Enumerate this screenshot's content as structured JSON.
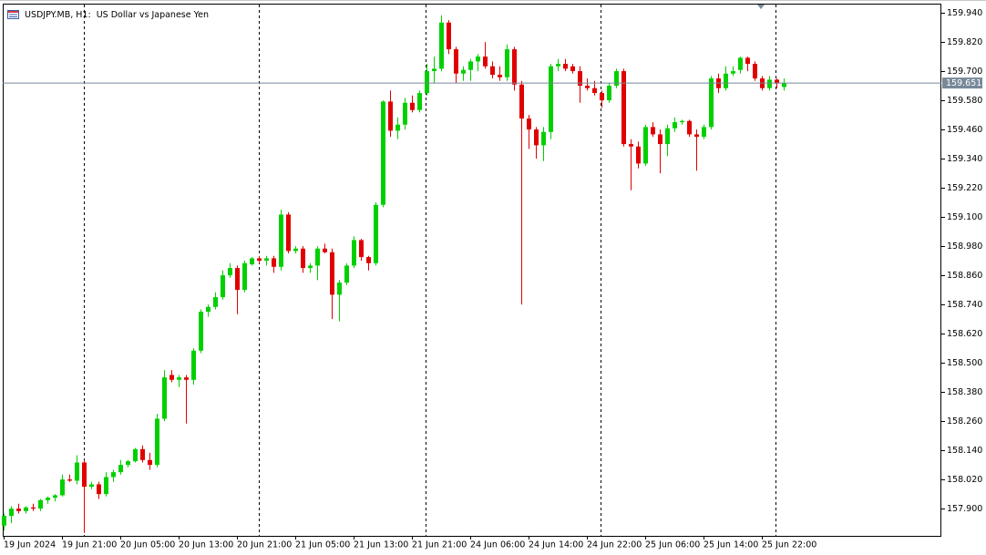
{
  "chart_data": {
    "type": "candlestick",
    "title": "USDJPY.MB, H1:  US Dollar vs Japanese Yen",
    "categories": [
      "19 Jun 2024",
      null,
      null,
      null,
      null,
      null,
      null,
      null,
      "19 Jun 21:00",
      null,
      null,
      null,
      null,
      null,
      null,
      null,
      "20 Jun 05:00",
      null,
      null,
      null,
      null,
      null,
      null,
      null,
      "20 Jun 13:00",
      null,
      null,
      null,
      null,
      null,
      null,
      null,
      "20 Jun 21:00",
      null,
      null,
      null,
      null,
      null,
      null,
      null,
      "21 Jun 05:00",
      null,
      null,
      null,
      null,
      null,
      null,
      null,
      "21 Jun 13:00",
      null,
      null,
      null,
      null,
      null,
      null,
      null,
      "21 Jun 21:00",
      null,
      null,
      null,
      null,
      null,
      null,
      null,
      "24 Jun 06:00",
      null,
      null,
      null,
      null,
      null,
      null,
      null,
      "24 Jun 14:00",
      null,
      null,
      null,
      null,
      null,
      null,
      null,
      "24 Jun 22:00",
      null,
      null,
      null,
      null,
      null,
      null,
      null,
      "25 Jun 06:00",
      null,
      null,
      null,
      null,
      null,
      null,
      null,
      "25 Jun 14:00",
      null,
      null,
      null,
      null,
      null,
      null,
      null,
      "25 Jun 22:00",
      null,
      null,
      null
    ],
    "open": [
      157.83,
      157.87,
      157.9,
      157.89,
      157.905,
      157.9,
      157.935,
      157.945,
      157.955,
      158.02,
      158.015,
      158.09,
      157.99,
      158.0,
      157.96,
      158.03,
      158.05,
      158.08,
      158.095,
      158.145,
      158.1,
      158.08,
      158.27,
      158.45,
      158.43,
      158.44,
      158.43,
      158.55,
      158.71,
      158.73,
      158.77,
      158.86,
      158.89,
      158.8,
      158.905,
      158.93,
      158.92,
      158.93,
      158.895,
      159.11,
      158.96,
      158.97,
      158.89,
      158.9,
      158.97,
      158.955,
      158.78,
      158.83,
      158.9,
      159.005,
      158.935,
      158.91,
      159.15,
      159.575,
      159.455,
      159.48,
      159.57,
      159.54,
      159.61,
      159.7,
      159.71,
      159.9,
      159.79,
      159.69,
      159.705,
      159.74,
      159.76,
      159.72,
      159.685,
      159.675,
      159.79,
      159.645,
      159.505,
      159.46,
      159.395,
      159.45,
      159.72,
      159.73,
      159.72,
      159.7,
      159.64,
      159.63,
      159.61,
      159.58,
      159.64,
      159.7,
      159.4,
      159.39,
      159.32,
      159.47,
      159.44,
      159.4,
      159.465,
      159.49,
      159.495,
      159.44,
      159.43,
      159.47,
      159.67,
      159.63,
      159.69,
      159.705,
      159.755,
      159.73,
      159.67,
      159.63,
      159.665,
      159.635
    ],
    "high": [
      157.88,
      157.91,
      157.92,
      157.91,
      157.92,
      157.94,
      157.95,
      157.96,
      158.04,
      158.04,
      158.12,
      158.1,
      158.01,
      158.01,
      158.05,
      158.06,
      158.1,
      158.1,
      158.15,
      158.16,
      158.13,
      158.29,
      158.47,
      158.47,
      158.45,
      158.45,
      158.56,
      158.72,
      158.74,
      158.79,
      158.88,
      158.91,
      158.9,
      158.92,
      158.935,
      158.94,
      158.94,
      158.94,
      159.13,
      159.12,
      158.98,
      158.98,
      158.91,
      158.98,
      158.99,
      158.97,
      158.84,
      158.91,
      159.02,
      159.01,
      158.94,
      159.16,
      159.58,
      159.62,
      159.51,
      159.59,
      159.6,
      159.62,
      159.73,
      159.76,
      159.93,
      159.91,
      159.8,
      159.72,
      159.75,
      159.77,
      159.82,
      159.74,
      159.72,
      159.81,
      159.8,
      159.66,
      159.52,
      159.47,
      159.47,
      159.73,
      159.75,
      159.75,
      159.73,
      159.72,
      159.67,
      159.66,
      159.62,
      159.65,
      159.71,
      159.71,
      159.42,
      159.41,
      159.48,
      159.49,
      159.46,
      159.48,
      159.51,
      159.5,
      159.5,
      159.46,
      159.48,
      159.68,
      159.69,
      159.72,
      159.72,
      159.76,
      159.76,
      159.74,
      159.68,
      159.68,
      159.67,
      159.67
    ],
    "low": [
      157.81,
      157.84,
      157.88,
      157.88,
      157.89,
      157.89,
      157.92,
      157.93,
      157.95,
      158.01,
      158.0,
      157.8,
      157.98,
      157.94,
      157.95,
      158.01,
      158.04,
      158.07,
      158.09,
      158.09,
      158.06,
      158.07,
      158.26,
      158.42,
      158.4,
      158.25,
      158.41,
      158.54,
      158.69,
      158.72,
      158.76,
      158.85,
      158.7,
      158.79,
      158.9,
      158.91,
      158.9,
      158.87,
      158.88,
      158.95,
      158.95,
      158.87,
      158.87,
      158.84,
      158.95,
      158.68,
      158.67,
      158.82,
      158.89,
      158.92,
      158.88,
      158.9,
      159.14,
      159.43,
      159.42,
      159.46,
      159.53,
      159.53,
      159.6,
      159.65,
      159.7,
      159.77,
      159.65,
      159.66,
      159.66,
      159.7,
      159.71,
      159.67,
      159.66,
      159.66,
      159.62,
      158.74,
      159.38,
      159.34,
      159.33,
      159.42,
      159.7,
      159.7,
      159.69,
      159.57,
      159.62,
      159.6,
      159.55,
      159.57,
      159.63,
      159.39,
      159.21,
      159.3,
      159.31,
      159.43,
      159.28,
      159.35,
      159.45,
      159.48,
      159.43,
      159.29,
      159.42,
      159.46,
      159.61,
      159.62,
      159.68,
      159.69,
      159.7,
      159.66,
      159.62,
      159.62,
      159.63,
      159.62
    ],
    "close": [
      157.87,
      157.9,
      157.89,
      157.905,
      157.9,
      157.935,
      157.945,
      157.955,
      158.02,
      158.015,
      158.09,
      157.99,
      158.0,
      157.96,
      158.03,
      158.05,
      158.08,
      158.095,
      158.145,
      158.1,
      158.08,
      158.27,
      158.44,
      158.43,
      158.44,
      158.43,
      158.55,
      158.71,
      158.73,
      158.77,
      158.86,
      158.89,
      158.8,
      158.91,
      158.93,
      158.92,
      158.93,
      158.895,
      159.11,
      158.96,
      158.97,
      158.89,
      158.9,
      158.97,
      158.955,
      158.78,
      158.83,
      158.9,
      159.005,
      158.935,
      158.91,
      159.15,
      159.575,
      159.455,
      159.48,
      159.57,
      159.54,
      159.61,
      159.7,
      159.71,
      159.9,
      159.79,
      159.69,
      159.705,
      159.74,
      159.76,
      159.72,
      159.685,
      159.675,
      159.79,
      159.645,
      159.505,
      159.46,
      159.395,
      159.45,
      159.72,
      159.73,
      159.71,
      159.7,
      159.64,
      159.63,
      159.61,
      159.58,
      159.64,
      159.7,
      159.4,
      159.39,
      159.32,
      159.47,
      159.44,
      159.4,
      159.465,
      159.49,
      159.495,
      159.44,
      159.43,
      159.47,
      159.67,
      159.63,
      159.69,
      159.7,
      159.755,
      159.73,
      159.67,
      159.63,
      159.665,
      159.65,
      159.651
    ],
    "up_color": "#00d000",
    "down_color": "#e00000",
    "ylim": [
      157.788,
      159.974
    ],
    "yticks": [
      {
        "value": 157.9,
        "label": "157.900"
      },
      {
        "value": 158.02,
        "label": "158.020"
      },
      {
        "value": 158.14,
        "label": "158.140"
      },
      {
        "value": 158.26,
        "label": "158.260"
      },
      {
        "value": 158.38,
        "label": "158.380"
      },
      {
        "value": 158.5,
        "label": "158.500"
      },
      {
        "value": 158.62,
        "label": "158.620"
      },
      {
        "value": 158.74,
        "label": "158.740"
      },
      {
        "value": 158.86,
        "label": "158.860"
      },
      {
        "value": 158.98,
        "label": "158.980"
      },
      {
        "value": 159.1,
        "label": "159.100"
      },
      {
        "value": 159.22,
        "label": "159.220"
      },
      {
        "value": 159.34,
        "label": "159.340"
      },
      {
        "value": 159.46,
        "label": "159.460"
      },
      {
        "value": 159.58,
        "label": "159.580"
      },
      {
        "value": 159.7,
        "label": "159.700"
      },
      {
        "value": 159.82,
        "label": "159.820"
      },
      {
        "value": 159.94,
        "label": "159.940"
      }
    ],
    "last_price": 159.651
  }
}
